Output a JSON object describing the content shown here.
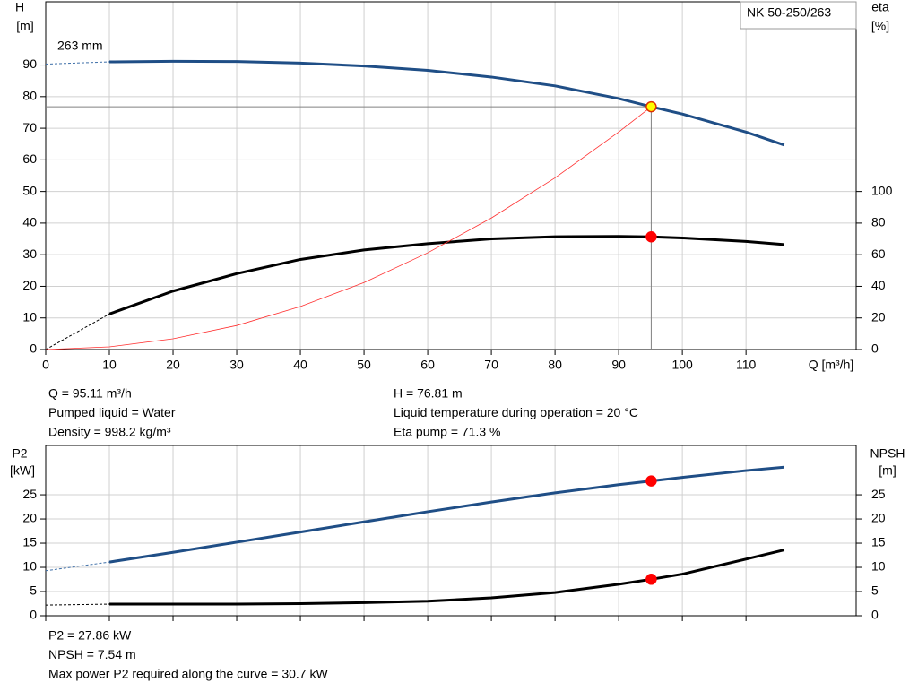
{
  "chart_data": [
    {
      "type": "line",
      "title": "NK 50-250/263",
      "curve_label": "263 mm",
      "y_label": [
        "H",
        "[m]"
      ],
      "y2_label": [
        "eta",
        "[%]"
      ],
      "x_label": "Q [m³/h]",
      "xlim": [
        0,
        127.3
      ],
      "xticks": [
        0,
        10,
        20,
        30,
        40,
        50,
        60,
        70,
        80,
        90,
        100,
        110
      ],
      "ylim": [
        0,
        110
      ],
      "yticks": [
        0,
        10,
        20,
        30,
        40,
        50,
        60,
        70,
        80,
        90
      ],
      "y2lim": [
        0,
        220
      ],
      "y2ticks": [
        0,
        20,
        40,
        60,
        80,
        100
      ],
      "grid": true,
      "series": [
        {
          "color": "#3e6fa8",
          "width": 1,
          "dash": true,
          "x": [
            0,
            10
          ],
          "values": [
            90.3,
            91
          ]
        },
        {
          "color": "#1f4e86",
          "width": 3,
          "dash": false,
          "x": [
            10,
            20,
            30,
            40,
            50,
            60,
            70,
            80,
            90,
            95.11,
            100,
            110,
            116
          ],
          "values": [
            91,
            91.2,
            91.1,
            90.6,
            89.7,
            88.3,
            86.2,
            83.4,
            79.4,
            76.81,
            74.5,
            68.8,
            64.7
          ]
        },
        {
          "color": "#000000",
          "width": 1,
          "dash": true,
          "axis": "y2",
          "x": [
            0,
            10
          ],
          "values": [
            0,
            22.5
          ]
        },
        {
          "color": "#000000",
          "width": 3,
          "dash": false,
          "axis": "y2",
          "x": [
            10,
            20,
            30,
            40,
            50,
            60,
            70,
            80,
            90,
            95.11,
            100,
            110,
            116
          ],
          "values": [
            22.5,
            37,
            48,
            57,
            63,
            67,
            70,
            71.4,
            71.6,
            71.3,
            70.6,
            68.4,
            66.4
          ]
        },
        {
          "color": "#ff3030",
          "width": 0.8,
          "dash": false,
          "x": [
            0,
            10,
            20,
            30,
            40,
            50,
            60,
            70,
            80,
            90,
            95.11
          ],
          "values": [
            0,
            0.85,
            3.4,
            7.6,
            13.6,
            21.2,
            30.6,
            41.6,
            54.3,
            68.8,
            76.81
          ]
        }
      ],
      "crosshair": {
        "x": 95.11,
        "y": 76.81,
        "color": "#808080"
      },
      "markers": [
        {
          "x": 95.11,
          "y": 76.81,
          "color": "#ffff00"
        },
        {
          "x": 95.11,
          "y": 71.3,
          "axis": "y2",
          "color": "#ff0000"
        }
      ],
      "info": [
        [
          "Q = 95.11 m³/h",
          "Pumped liquid = Water",
          "Density = 998.2 kg/m³"
        ],
        [
          "H = 76.81 m",
          "Liquid temperature during operation = 20 °C",
          "Eta pump = 71.3 %"
        ]
      ]
    },
    {
      "type": "line",
      "y_label": [
        "P2",
        "[kW]"
      ],
      "y2_label": [
        "NPSH",
        "[m]"
      ],
      "xlim": [
        0,
        127.3
      ],
      "xticks": [
        0,
        10,
        20,
        30,
        40,
        50,
        60,
        70,
        80,
        90,
        100,
        110
      ],
      "show_xtick_labels": false,
      "ylim": [
        0,
        35.2
      ],
      "yticks": [
        0,
        5,
        10,
        15,
        20,
        25
      ],
      "y2lim": [
        0,
        35.2
      ],
      "y2ticks": [
        0,
        5,
        10,
        15,
        20,
        25
      ],
      "grid": true,
      "series": [
        {
          "color": "#3e6fa8",
          "width": 1,
          "dash": true,
          "x": [
            0,
            10
          ],
          "values": [
            9.3,
            11.1
          ]
        },
        {
          "color": "#1f4e86",
          "width": 3,
          "dash": false,
          "x": [
            10,
            20,
            30,
            40,
            50,
            60,
            70,
            80,
            90,
            95.11,
            100,
            110,
            116
          ],
          "values": [
            11.1,
            13.1,
            15.2,
            17.3,
            19.4,
            21.5,
            23.5,
            25.4,
            27.1,
            27.86,
            28.6,
            30,
            30.7
          ]
        },
        {
          "color": "#000000",
          "width": 1,
          "dash": true,
          "axis": "y2",
          "x": [
            0,
            10
          ],
          "values": [
            2.2,
            2.4
          ]
        },
        {
          "color": "#000000",
          "width": 3,
          "dash": false,
          "axis": "y2",
          "x": [
            10,
            20,
            30,
            40,
            50,
            60,
            70,
            80,
            90,
            95.11,
            100,
            110,
            116
          ],
          "values": [
            2.4,
            2.4,
            2.4,
            2.5,
            2.7,
            3,
            3.7,
            4.8,
            6.5,
            7.54,
            8.6,
            11.7,
            13.6
          ]
        }
      ],
      "markers": [
        {
          "x": 95.11,
          "y": 27.86,
          "color": "#ff0000"
        },
        {
          "x": 95.11,
          "y": 7.54,
          "axis": "y2",
          "color": "#ff0000"
        }
      ],
      "info": [
        [
          "P2 = 27.86 kW",
          "NPSH = 7.54 m",
          "Max power P2 required along the curve = 30.7 kW"
        ]
      ]
    }
  ]
}
